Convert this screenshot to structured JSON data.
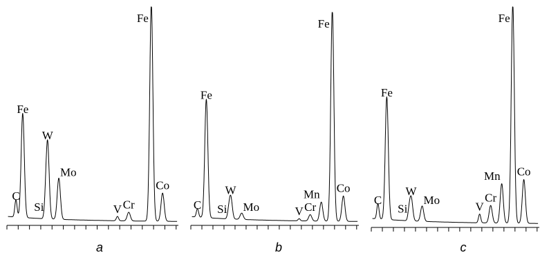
{
  "chart_data": [
    {
      "type": "line",
      "panel_label": "a",
      "title": "",
      "xlabel": "",
      "ylabel": "",
      "grid": false,
      "peaks": [
        {
          "element": "C",
          "x": 0.4,
          "intensity": 0.08
        },
        {
          "element": "Fe",
          "x": 0.7,
          "intensity": 0.48
        },
        {
          "element": "Si",
          "x": 1.7,
          "intensity": 0.03
        },
        {
          "element": "W",
          "x": 1.8,
          "intensity": 0.36
        },
        {
          "element": "Mo",
          "x": 2.3,
          "intensity": 0.19
        },
        {
          "element": "V",
          "x": 4.9,
          "intensity": 0.02
        },
        {
          "element": "Cr",
          "x": 5.4,
          "intensity": 0.04
        },
        {
          "element": "Fe",
          "x": 6.4,
          "intensity": 1.0
        },
        {
          "element": "Co",
          "x": 6.9,
          "intensity": 0.13
        }
      ]
    },
    {
      "type": "line",
      "panel_label": "b",
      "title": "",
      "xlabel": "",
      "ylabel": "",
      "grid": false,
      "peaks": [
        {
          "element": "C",
          "x": 0.3,
          "intensity": 0.04
        },
        {
          "element": "Fe",
          "x": 0.7,
          "intensity": 0.56
        },
        {
          "element": "Si",
          "x": 1.7,
          "intensity": 0.02
        },
        {
          "element": "W",
          "x": 1.8,
          "intensity": 0.11
        },
        {
          "element": "Mo",
          "x": 2.3,
          "intensity": 0.03
        },
        {
          "element": "V",
          "x": 4.9,
          "intensity": 0.01
        },
        {
          "element": "Cr",
          "x": 5.4,
          "intensity": 0.03
        },
        {
          "element": "Mn",
          "x": 5.9,
          "intensity": 0.09
        },
        {
          "element": "Fe",
          "x": 6.4,
          "intensity": 1.0
        },
        {
          "element": "Co",
          "x": 6.9,
          "intensity": 0.12
        }
      ]
    },
    {
      "type": "line",
      "panel_label": "c",
      "title": "",
      "xlabel": "",
      "ylabel": "",
      "grid": false,
      "peaks": [
        {
          "element": "C",
          "x": 0.3,
          "intensity": 0.07
        },
        {
          "element": "Fe",
          "x": 0.7,
          "intensity": 0.56
        },
        {
          "element": "Si",
          "x": 1.7,
          "intensity": 0.03
        },
        {
          "element": "W",
          "x": 1.8,
          "intensity": 0.11
        },
        {
          "element": "Mo",
          "x": 2.3,
          "intensity": 0.07
        },
        {
          "element": "V",
          "x": 4.9,
          "intensity": 0.04
        },
        {
          "element": "Cr",
          "x": 5.4,
          "intensity": 0.08
        },
        {
          "element": "Mn",
          "x": 5.9,
          "intensity": 0.18
        },
        {
          "element": "Fe",
          "x": 6.4,
          "intensity": 1.0
        },
        {
          "element": "Co",
          "x": 6.9,
          "intensity": 0.2
        }
      ]
    }
  ]
}
